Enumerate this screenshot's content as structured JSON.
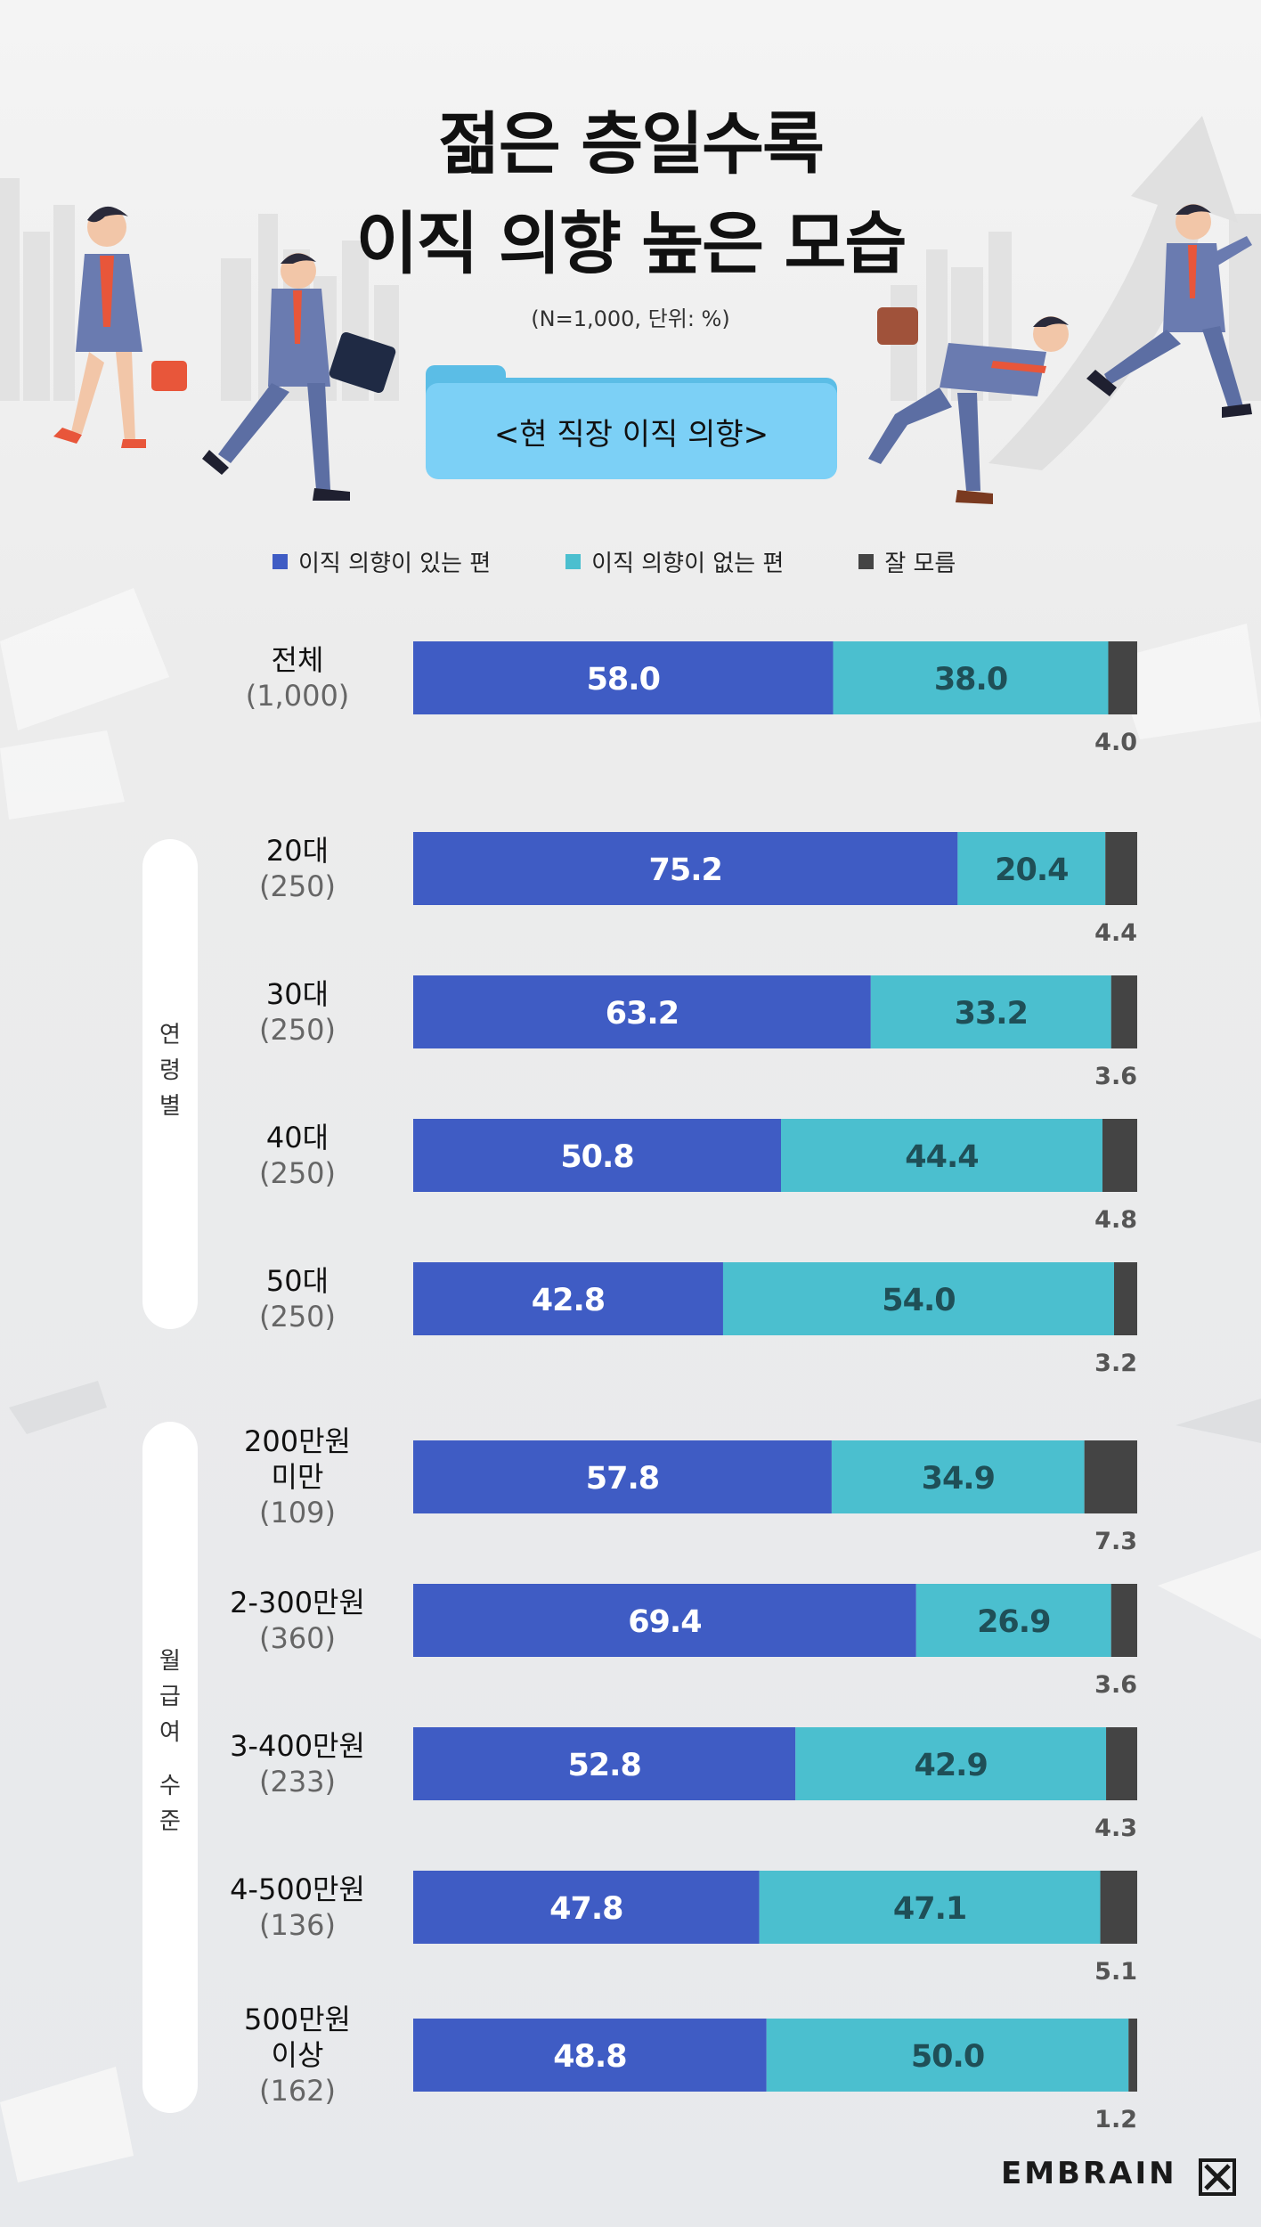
{
  "title_lines": [
    "젊은 층일수록",
    "이직 의향 높은 모습"
  ],
  "subtitle": "(N=1,000, 단위: %)",
  "folder_label": "<현 직장 이직 의향>",
  "legend": [
    {
      "label": "이직 의향이 있는 편",
      "color": "#3f5cc4"
    },
    {
      "label": "이직 의향이 없는 편",
      "color": "#4bbfcf"
    },
    {
      "label": "잘 모름",
      "color": "#444444"
    }
  ],
  "groups": {
    "age": "연령별",
    "income": "월급여 수준"
  },
  "brand": "EMBRAIN",
  "chart_data": {
    "type": "bar",
    "stacked": true,
    "orientation": "horizontal",
    "xlim": [
      0,
      100
    ],
    "categories": [
      {
        "label": [
          "전체"
        ],
        "n": "(1,000)"
      },
      {
        "label": [
          "20대"
        ],
        "n": "(250)"
      },
      {
        "label": [
          "30대"
        ],
        "n": "(250)"
      },
      {
        "label": [
          "40대"
        ],
        "n": "(250)"
      },
      {
        "label": [
          "50대"
        ],
        "n": "(250)"
      },
      {
        "label": [
          "200만원",
          "미만"
        ],
        "n": "(109)"
      },
      {
        "label": [
          "2-300만원"
        ],
        "n": "(360)"
      },
      {
        "label": [
          "3-400만원"
        ],
        "n": "(233)"
      },
      {
        "label": [
          "4-500만원"
        ],
        "n": "(136)"
      },
      {
        "label": [
          "500만원",
          "이상"
        ],
        "n": "(162)"
      }
    ],
    "series": [
      {
        "name": "이직 의향이 있는 편",
        "values": [
          58.0,
          75.2,
          63.2,
          50.8,
          42.8,
          57.8,
          69.4,
          52.8,
          47.8,
          48.8
        ]
      },
      {
        "name": "이직 의향이 없는 편",
        "values": [
          38.0,
          20.4,
          33.2,
          44.4,
          54.0,
          34.9,
          26.9,
          42.9,
          47.1,
          50.0
        ]
      },
      {
        "name": "잘 모름",
        "values": [
          4.0,
          4.4,
          3.6,
          4.8,
          3.2,
          7.3,
          3.6,
          4.3,
          5.1,
          1.2
        ]
      }
    ]
  }
}
